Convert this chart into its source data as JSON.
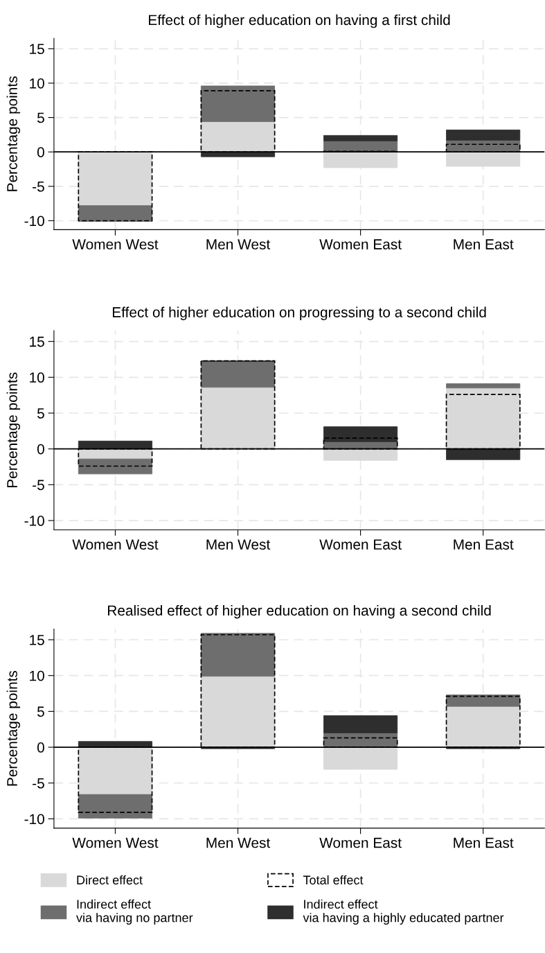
{
  "chart_data": [
    {
      "type": "bar",
      "title": "Effect of higher education on having a first child",
      "ylabel": "Percentage points",
      "categories": [
        "Women West",
        "Men West",
        "Women East",
        "Men East"
      ],
      "ylim": [
        -11.3,
        16.5
      ],
      "yticks": [
        -10,
        -5,
        0,
        5,
        10,
        15
      ],
      "grid": true,
      "legend": false,
      "ref_lines": [
        {
          "axis": "y",
          "value": 0,
          "color": "#000000"
        }
      ],
      "series": [
        {
          "color": "#d9d9d9",
          "base": [
            0,
            0,
            0,
            0
          ],
          "values": [
            -7.8,
            4.4,
            -2.3,
            -2.1
          ]
        },
        {
          "color": "#6e6e6e",
          "base": [
            -7.8,
            4.4,
            0,
            0
          ],
          "values": [
            -2.3,
            5.2,
            1.6,
            1.7
          ]
        },
        {
          "color": "#000000",
          "line_style": "dashed",
          "base": [
            0,
            0,
            0,
            0
          ],
          "values": [
            -10.0,
            8.9,
            0.1,
            1.1
          ]
        },
        {
          "color": "#2e2e2e",
          "base": [
            null,
            0,
            1.6,
            1.7
          ],
          "values": [
            null,
            -0.7,
            0.8,
            1.5
          ]
        }
      ]
    },
    {
      "type": "bar",
      "title": "Effect of higher education on progressing to a second child",
      "ylabel": "Percentage points",
      "categories": [
        "Women West",
        "Men West",
        "Women East",
        "Men East"
      ],
      "ylim": [
        -11.3,
        16.5
      ],
      "yticks": [
        -10,
        -5,
        0,
        5,
        10,
        15
      ],
      "grid": true,
      "legend": false,
      "ref_lines": [
        {
          "axis": "y",
          "value": 0,
          "color": "#000000"
        }
      ],
      "series": [
        {
          "color": "#d9d9d9",
          "base": [
            0,
            0,
            0,
            0
          ],
          "values": [
            -1.4,
            8.6,
            -1.6,
            8.5
          ]
        },
        {
          "color": "#6e6e6e",
          "base": [
            -1.4,
            8.6,
            0,
            8.5
          ],
          "values": [
            -2.1,
            3.6,
            1.0,
            0.6
          ]
        },
        {
          "color": "#000000",
          "line_style": "dashed",
          "base": [
            0,
            0,
            0,
            0
          ],
          "values": [
            -2.4,
            12.3,
            1.5,
            7.6
          ]
        },
        {
          "color": "#2e2e2e",
          "base": [
            0,
            12.2,
            1.0,
            0
          ],
          "values": [
            1.1,
            0.1,
            2.1,
            -1.5
          ]
        }
      ]
    },
    {
      "type": "bar",
      "title": "Realised effect of higher education on having a second child",
      "ylabel": "Percentage points",
      "categories": [
        "Women West",
        "Men West",
        "Women East",
        "Men East"
      ],
      "ylim": [
        -11.3,
        16.5
      ],
      "yticks": [
        -10,
        -5,
        0,
        5,
        10,
        15
      ],
      "grid": true,
      "legend": "bottom",
      "ref_lines": [
        {
          "axis": "y",
          "value": 0,
          "color": "#000000"
        }
      ],
      "series": [
        {
          "name": "Direct effect",
          "color": "#d9d9d9",
          "base": [
            0,
            0,
            0,
            0
          ],
          "values": [
            -6.6,
            9.9,
            -3.1,
            5.7
          ]
        },
        {
          "name": "Indirect effect\nvia having no partner",
          "color": "#6e6e6e",
          "base": [
            -6.6,
            9.9,
            0,
            5.7
          ],
          "values": [
            -3.3,
            6.0,
            2.0,
            1.6
          ]
        },
        {
          "name": "Total effect",
          "color": "#000000",
          "line_style": "dashed",
          "base": [
            0,
            0,
            0,
            0
          ],
          "values": [
            -9.1,
            15.7,
            1.3,
            7.1
          ]
        },
        {
          "name": "Indirect effect\nvia having a highly educated partner",
          "color": "#2e2e2e",
          "base": [
            0,
            0,
            2.0,
            0
          ],
          "values": [
            0.8,
            -0.2,
            2.4,
            -0.2
          ]
        }
      ]
    }
  ]
}
